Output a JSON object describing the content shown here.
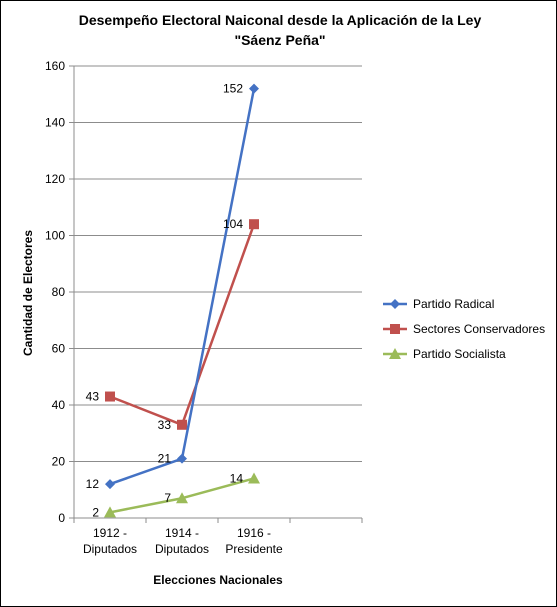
{
  "chart_data": {
    "type": "line",
    "title_line1": "Desempeño Electoral Naiconal desde la Aplicación de la Ley",
    "title_line2": "\"Sáenz Peña\"",
    "xlabel": "Elecciones Nacionales",
    "ylabel": "Cantidad de Electores",
    "ylim": [
      0,
      160
    ],
    "yticks": [
      0,
      20,
      40,
      60,
      80,
      100,
      120,
      140,
      160
    ],
    "grid": "horizontal",
    "legend": "right",
    "categories": [
      [
        "1912 -",
        "Diputados"
      ],
      [
        "1914 -",
        "Diputados"
      ],
      [
        "1916 -",
        "Presidente"
      ]
    ],
    "series": [
      {
        "name": "Partido Radical",
        "values": [
          12,
          21,
          152
        ],
        "color": "#4472C4",
        "marker": "diamond"
      },
      {
        "name": "Sectores Conservadores",
        "values": [
          43,
          33,
          104
        ],
        "color": "#C0504D",
        "marker": "square"
      },
      {
        "name": "Partido Socialista",
        "values": [
          2,
          7,
          14
        ],
        "color": "#9BBB59",
        "marker": "triangle"
      }
    ]
  }
}
